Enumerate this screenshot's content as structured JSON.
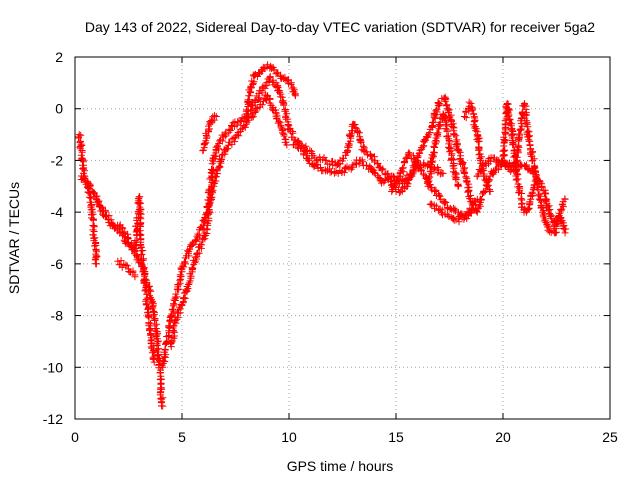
{
  "chart_data": {
    "type": "scatter",
    "title": "Day 143 of 2022, Sidereal Day-to-day VTEC variation (SDTVAR) for receiver 5ga2",
    "xlabel": "GPS time / hours",
    "ylabel": "SDTVAR / TECUs",
    "xlim": [
      0,
      25
    ],
    "ylim": [
      -12,
      2
    ],
    "xticks": [
      0,
      5,
      10,
      15,
      20,
      25
    ],
    "yticks": [
      -12,
      -10,
      -8,
      -6,
      -4,
      -2,
      0,
      2
    ],
    "grid": true,
    "marker": "+",
    "series": [
      {
        "name": "SDTVAR",
        "color": "#ff0000",
        "tracks": [
          {
            "points": [
              [
                0.2,
                -1.0
              ],
              [
                0.3,
                -1.8
              ],
              [
                0.4,
                -2.5
              ],
              [
                0.6,
                -3.0
              ],
              [
                0.8,
                -4.0
              ],
              [
                0.9,
                -5.0
              ],
              [
                1.0,
                -6.0
              ]
            ]
          },
          {
            "points": [
              [
                0.3,
                -2.6
              ],
              [
                0.7,
                -3.0
              ],
              [
                1.2,
                -3.8
              ],
              [
                1.8,
                -4.5
              ],
              [
                2.5,
                -5.2
              ],
              [
                3.2,
                -6.2
              ],
              [
                3.6,
                -7.5
              ],
              [
                3.8,
                -8.5
              ],
              [
                3.9,
                -9.5
              ],
              [
                4.0,
                -10.8
              ],
              [
                4.1,
                -11.5
              ]
            ]
          },
          {
            "points": [
              [
                1.0,
                -3.5
              ],
              [
                1.6,
                -4.4
              ],
              [
                2.2,
                -4.6
              ],
              [
                2.8,
                -5.5
              ],
              [
                3.0,
                -3.4
              ],
              [
                3.1,
                -5.5
              ],
              [
                3.3,
                -7.0
              ],
              [
                3.5,
                -8.5
              ],
              [
                3.7,
                -9.8
              ]
            ]
          },
          {
            "points": [
              [
                2.0,
                -5.9
              ],
              [
                2.5,
                -6.2
              ],
              [
                2.8,
                -6.5
              ]
            ]
          },
          {
            "points": [
              [
                4.1,
                -10.0
              ],
              [
                4.3,
                -9.0
              ],
              [
                4.5,
                -8.0
              ],
              [
                4.8,
                -7.0
              ],
              [
                5.0,
                -6.2
              ],
              [
                5.5,
                -5.2
              ],
              [
                6.0,
                -4.5
              ],
              [
                6.2,
                -3.8
              ],
              [
                6.4,
                -2.5
              ],
              [
                6.5,
                -1.8
              ],
              [
                6.8,
                -1.2
              ],
              [
                7.2,
                -0.8
              ],
              [
                7.6,
                -0.5
              ],
              [
                8.0,
                -0.3
              ],
              [
                8.4,
                0.3
              ],
              [
                8.8,
                0.8
              ],
              [
                9.1,
                1.2
              ],
              [
                9.4,
                1.0
              ],
              [
                9.7,
                0.3
              ],
              [
                10.0,
                -0.8
              ]
            ]
          },
          {
            "points": [
              [
                4.5,
                -9.2
              ],
              [
                4.7,
                -8.2
              ],
              [
                5.0,
                -7.6
              ],
              [
                5.3,
                -6.8
              ],
              [
                5.7,
                -5.6
              ],
              [
                6.1,
                -4.9
              ],
              [
                6.4,
                -3.2
              ],
              [
                6.6,
                -2.5
              ],
              [
                7.0,
                -1.6
              ],
              [
                7.5,
                -1.1
              ],
              [
                8.0,
                -0.6
              ],
              [
                8.5,
                0.0
              ],
              [
                9.0,
                0.5
              ],
              [
                9.4,
                -0.2
              ],
              [
                9.9,
                -1.4
              ]
            ]
          },
          {
            "points": [
              [
                6.0,
                -1.6
              ],
              [
                6.3,
                -0.5
              ],
              [
                6.6,
                -0.3
              ]
            ]
          },
          {
            "points": [
              [
                8.0,
                -0.2
              ],
              [
                8.2,
                0.8
              ],
              [
                8.4,
                1.3
              ],
              [
                8.6,
                1.4
              ],
              [
                8.8,
                1.6
              ],
              [
                9.0,
                1.7
              ],
              [
                9.3,
                1.5
              ],
              [
                9.6,
                1.3
              ],
              [
                9.9,
                1.1
              ],
              [
                10.2,
                0.8
              ],
              [
                10.3,
                0.5
              ]
            ]
          },
          {
            "points": [
              [
                10.0,
                -0.8
              ],
              [
                10.4,
                -1.3
              ],
              [
                10.8,
                -1.8
              ],
              [
                11.2,
                -2.2
              ],
              [
                11.8,
                -2.4
              ],
              [
                12.3,
                -2.5
              ],
              [
                12.8,
                -2.3
              ],
              [
                13.3,
                -2.0
              ],
              [
                13.8,
                -2.3
              ],
              [
                14.3,
                -2.8
              ],
              [
                14.8,
                -2.6
              ],
              [
                15.3,
                -2.9
              ],
              [
                15.8,
                -2.4
              ],
              [
                16.3,
                -2.1
              ],
              [
                16.8,
                -2.3
              ],
              [
                17.2,
                -2.5
              ]
            ]
          },
          {
            "points": [
              [
                10.2,
                -1.4
              ],
              [
                10.7,
                -1.5
              ],
              [
                11.2,
                -1.9
              ],
              [
                11.7,
                -2.0
              ],
              [
                12.2,
                -2.2
              ],
              [
                12.7,
                -1.7
              ],
              [
                13.0,
                -0.6
              ],
              [
                13.2,
                -0.9
              ],
              [
                13.5,
                -1.6
              ],
              [
                14.0,
                -2.0
              ],
              [
                14.5,
                -2.5
              ],
              [
                15.0,
                -3.2
              ],
              [
                15.5,
                -3.0
              ],
              [
                15.9,
                -2.2
              ]
            ]
          },
          {
            "points": [
              [
                14.8,
                -3.2
              ],
              [
                15.2,
                -2.5
              ],
              [
                15.6,
                -1.7
              ],
              [
                16.0,
                -2.1
              ],
              [
                16.4,
                -2.7
              ],
              [
                16.8,
                -3.2
              ],
              [
                17.2,
                -3.6
              ],
              [
                17.6,
                -3.9
              ],
              [
                18.0,
                -4.1
              ],
              [
                18.4,
                -4.0
              ],
              [
                18.8,
                -3.5
              ]
            ]
          },
          {
            "points": [
              [
                15.8,
                -2.4
              ],
              [
                16.2,
                -1.5
              ],
              [
                16.6,
                -0.8
              ],
              [
                17.0,
                0.2
              ],
              [
                17.3,
                0.4
              ],
              [
                17.6,
                -0.5
              ],
              [
                17.9,
                -1.6
              ],
              [
                18.2,
                -2.5
              ],
              [
                18.5,
                -3.6
              ],
              [
                18.8,
                -4.0
              ],
              [
                19.1,
                -3.2
              ],
              [
                19.4,
                -2.6
              ],
              [
                19.7,
                -2.3
              ],
              [
                20.0,
                -2.0
              ],
              [
                20.3,
                -2.1
              ],
              [
                20.6,
                -2.2
              ]
            ]
          },
          {
            "points": [
              [
                16.5,
                -3.0
              ],
              [
                16.8,
                -1.5
              ],
              [
                17.2,
                -0.2
              ],
              [
                17.6,
                -1.8
              ],
              [
                17.9,
                -3.0
              ]
            ]
          },
          {
            "points": [
              [
                16.6,
                -3.7
              ],
              [
                17.0,
                -3.9
              ],
              [
                17.4,
                -4.1
              ],
              [
                17.8,
                -4.3
              ],
              [
                18.2,
                -4.2
              ],
              [
                18.6,
                -3.9
              ]
            ]
          },
          {
            "points": [
              [
                18.2,
                -0.3
              ],
              [
                18.5,
                0.2
              ],
              [
                18.8,
                -1.0
              ],
              [
                19.1,
                -2.6
              ],
              [
                19.4,
                -3.2
              ]
            ]
          },
          {
            "points": [
              [
                18.8,
                -2.6
              ],
              [
                19.2,
                -2.1
              ],
              [
                19.6,
                -1.9
              ],
              [
                20.0,
                -2.1
              ],
              [
                20.5,
                -2.4
              ],
              [
                21.0,
                -2.2
              ],
              [
                21.4,
                -2.5
              ],
              [
                21.8,
                -2.9
              ],
              [
                22.1,
                -3.8
              ],
              [
                22.4,
                -4.5
              ],
              [
                22.7,
                -4.2
              ],
              [
                22.9,
                -4.8
              ]
            ]
          },
          {
            "points": [
              [
                20.0,
                -2.0
              ],
              [
                20.2,
                0.2
              ],
              [
                20.4,
                -0.8
              ],
              [
                20.6,
                -2.4
              ],
              [
                20.9,
                -3.8
              ],
              [
                21.1,
                -4.0
              ],
              [
                21.3,
                -3.5
              ],
              [
                21.5,
                -2.8
              ]
            ]
          },
          {
            "points": [
              [
                20.6,
                -2.1
              ],
              [
                20.8,
                -0.8
              ],
              [
                21.0,
                0.2
              ],
              [
                21.2,
                -1.2
              ],
              [
                21.5,
                -2.4
              ],
              [
                21.8,
                -3.8
              ],
              [
                22.1,
                -4.7
              ],
              [
                22.4,
                -4.8
              ],
              [
                22.7,
                -3.9
              ],
              [
                22.9,
                -3.5
              ]
            ]
          }
        ]
      }
    ]
  }
}
